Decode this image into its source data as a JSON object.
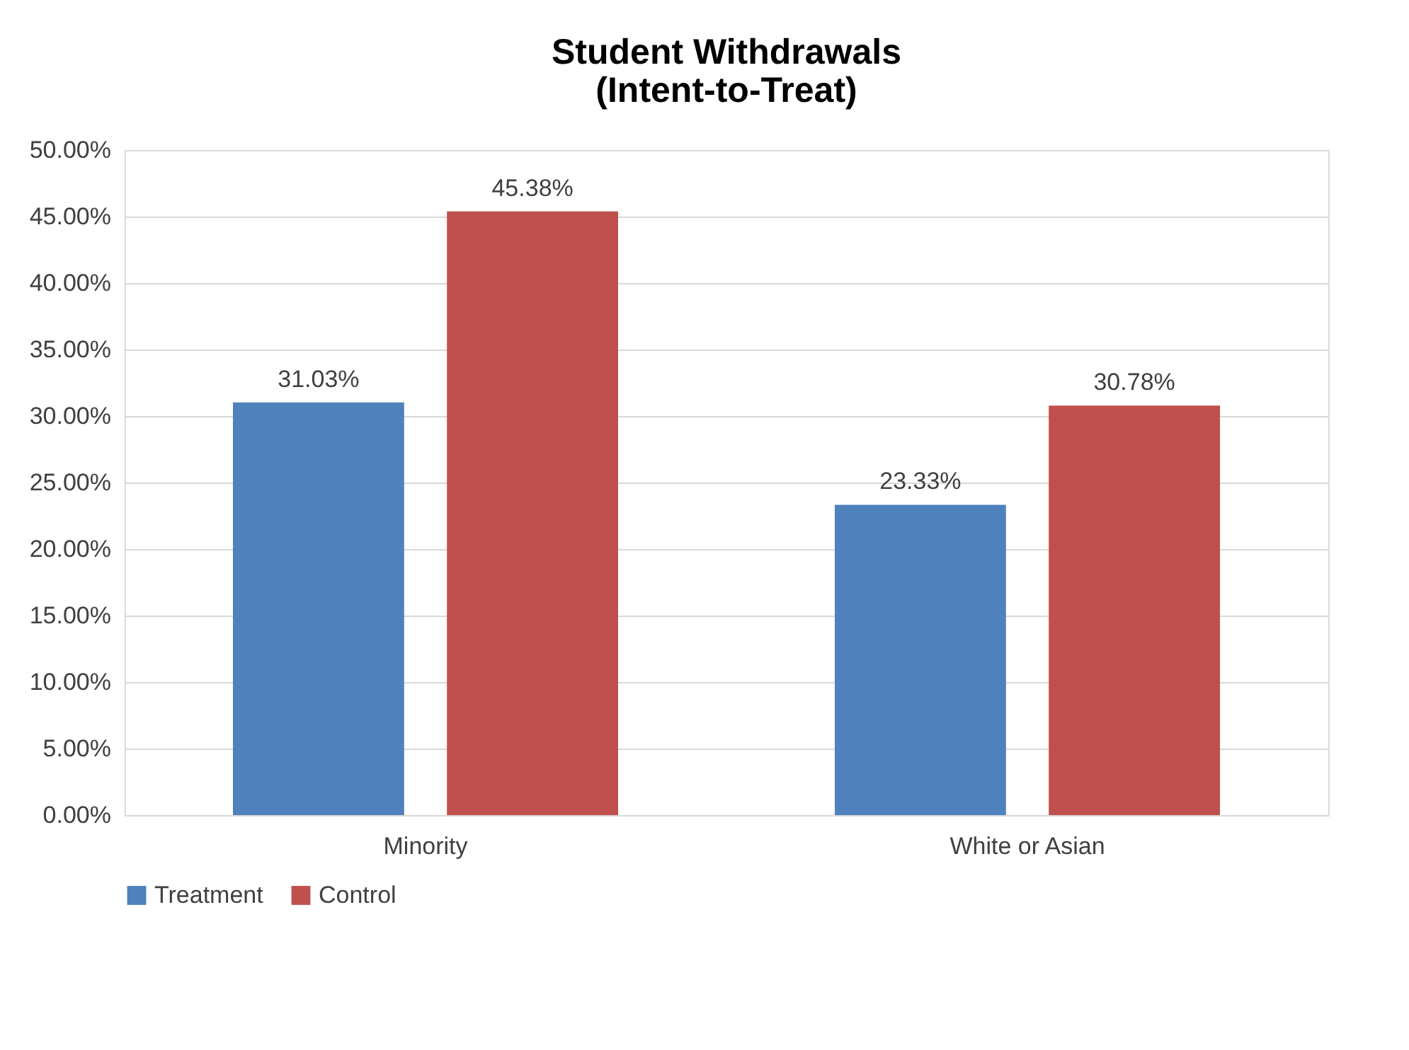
{
  "chart_data": {
    "type": "bar",
    "title": "Student Withdrawals\n(Intent-to-Treat)",
    "categories": [
      "Minority",
      "White or Asian"
    ],
    "series": [
      {
        "name": "Treatment",
        "color": "#4f81bd",
        "values": [
          31.03,
          23.33
        ],
        "value_labels": [
          "31.03%",
          "23.33%"
        ]
      },
      {
        "name": "Control",
        "color": "#c0504d",
        "values": [
          45.38,
          30.78
        ],
        "value_labels": [
          "45.38%",
          "30.78%"
        ]
      }
    ],
    "ylim": [
      0,
      50
    ],
    "yticks": [
      {
        "value": 0,
        "label": "0.00%"
      },
      {
        "value": 5,
        "label": "5.00%"
      },
      {
        "value": 10,
        "label": "10.00%"
      },
      {
        "value": 15,
        "label": "15.00%"
      },
      {
        "value": 20,
        "label": "20.00%"
      },
      {
        "value": 25,
        "label": "25.00%"
      },
      {
        "value": 30,
        "label": "30.00%"
      },
      {
        "value": 35,
        "label": "35.00%"
      },
      {
        "value": 40,
        "label": "40.00%"
      },
      {
        "value": 45,
        "label": "45.00%"
      },
      {
        "value": 50,
        "label": "50.00%"
      }
    ],
    "grid": "y",
    "legend": "bottom"
  }
}
